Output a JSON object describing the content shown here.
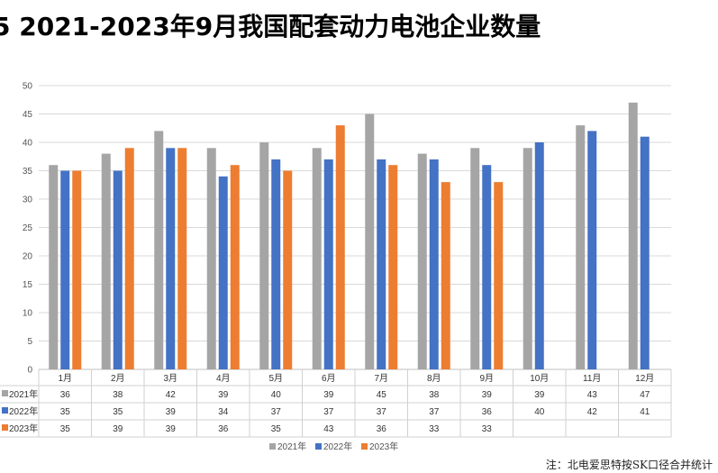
{
  "title": "5  2021-2023年9月我国配套动力电池企业数量",
  "source": "注：北电爱思特按SK口径合并统计",
  "chart_data": {
    "type": "bar",
    "categories": [
      "1月",
      "2月",
      "3月",
      "4月",
      "5月",
      "6月",
      "7月",
      "8月",
      "9月",
      "10月",
      "11月",
      "12月"
    ],
    "series": [
      {
        "name": "2021年",
        "color": "#a5a5a5",
        "values": [
          36,
          38,
          42,
          39,
          40,
          39,
          45,
          38,
          39,
          39,
          43,
          47
        ]
      },
      {
        "name": "2022年",
        "color": "#4472c4",
        "values": [
          35,
          35,
          39,
          34,
          37,
          37,
          37,
          37,
          36,
          40,
          42,
          41
        ]
      },
      {
        "name": "2023年",
        "color": "#ed7d31",
        "values": [
          35,
          39,
          39,
          36,
          35,
          43,
          36,
          33,
          33,
          null,
          null,
          null
        ]
      }
    ],
    "yticks": [
      0,
      5,
      10,
      15,
      20,
      25,
      30,
      35,
      40,
      45,
      50
    ],
    "ylim": [
      0,
      50
    ],
    "grid": true,
    "legend": "bottom",
    "data_table": true
  }
}
